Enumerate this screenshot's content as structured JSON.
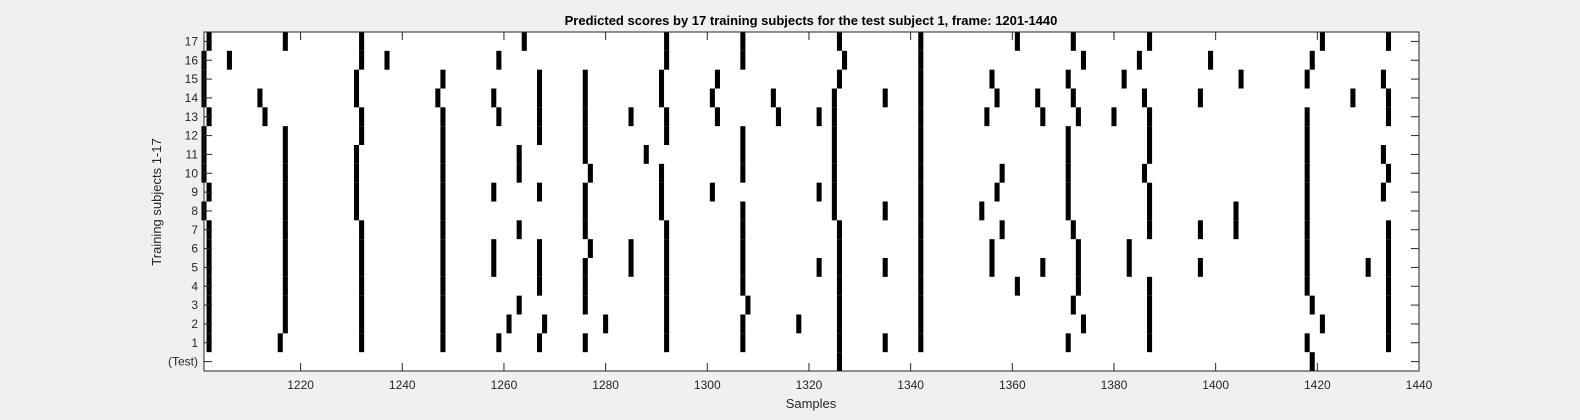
{
  "chart_data": {
    "type": "raster",
    "title": "Predicted scores by 17 training subjects for the test subject 1, frame: 1201-1440",
    "xlabel": "Samples",
    "ylabel": "Training subjects 1-17",
    "xlim": [
      1201,
      1440
    ],
    "xticks": [
      1220,
      1240,
      1260,
      1280,
      1300,
      1320,
      1340,
      1360,
      1380,
      1400,
      1420,
      1440
    ],
    "ytick_labels": [
      "(Test)",
      "1",
      "2",
      "3",
      "4",
      "5",
      "6",
      "7",
      "8",
      "9",
      "10",
      "11",
      "12",
      "13",
      "14",
      "15",
      "16",
      "17"
    ],
    "grid": false,
    "rows": [
      {
        "label": "(Test)",
        "spikes": [
          1326,
          1419
        ]
      },
      {
        "label": "1",
        "spikes": [
          1202,
          1216,
          1232,
          1248,
          1259,
          1267,
          1276,
          1292,
          1307,
          1326,
          1335,
          1342,
          1371,
          1387,
          1418,
          1434
        ]
      },
      {
        "label": "2",
        "spikes": [
          1202,
          1217,
          1232,
          1248,
          1261,
          1268,
          1280,
          1292,
          1307,
          1318,
          1326,
          1342,
          1374,
          1387,
          1421,
          1434
        ]
      },
      {
        "label": "3",
        "spikes": [
          1202,
          1217,
          1232,
          1248,
          1263,
          1276,
          1292,
          1308,
          1326,
          1342,
          1372,
          1387,
          1419,
          1434
        ]
      },
      {
        "label": "4",
        "spikes": [
          1202,
          1217,
          1232,
          1248,
          1267,
          1276,
          1292,
          1307,
          1326,
          1342,
          1361,
          1373,
          1387,
          1418,
          1434
        ]
      },
      {
        "label": "5",
        "spikes": [
          1202,
          1217,
          1232,
          1248,
          1258,
          1267,
          1276,
          1285,
          1292,
          1307,
          1322,
          1326,
          1335,
          1342,
          1356,
          1366,
          1373,
          1383,
          1397,
          1418,
          1430,
          1434
        ]
      },
      {
        "label": "6",
        "spikes": [
          1202,
          1217,
          1232,
          1248,
          1258,
          1267,
          1277,
          1285,
          1292,
          1307,
          1326,
          1342,
          1356,
          1373,
          1383,
          1418,
          1434
        ]
      },
      {
        "label": "7",
        "spikes": [
          1202,
          1217,
          1232,
          1248,
          1263,
          1276,
          1292,
          1307,
          1326,
          1342,
          1358,
          1372,
          1387,
          1397,
          1404,
          1418,
          1434
        ]
      },
      {
        "label": "8",
        "spikes": [
          1201,
          1217,
          1231,
          1248,
          1276,
          1291,
          1307,
          1325,
          1335,
          1342,
          1354,
          1371,
          1387,
          1404,
          1418
        ]
      },
      {
        "label": "9",
        "spikes": [
          1202,
          1217,
          1231,
          1248,
          1258,
          1267,
          1276,
          1291,
          1301,
          1322,
          1325,
          1342,
          1357,
          1371,
          1387,
          1418,
          1433
        ]
      },
      {
        "label": "10",
        "spikes": [
          1201,
          1217,
          1231,
          1248,
          1263,
          1277,
          1291,
          1307,
          1325,
          1342,
          1358,
          1371,
          1386,
          1418,
          1434
        ]
      },
      {
        "label": "11",
        "spikes": [
          1201,
          1217,
          1231,
          1248,
          1263,
          1276,
          1288,
          1307,
          1325,
          1342,
          1371,
          1387,
          1418,
          1433
        ]
      },
      {
        "label": "12",
        "spikes": [
          1201,
          1217,
          1232,
          1248,
          1267,
          1276,
          1292,
          1307,
          1325,
          1342,
          1371,
          1387,
          1418
        ]
      },
      {
        "label": "13",
        "spikes": [
          1202,
          1213,
          1232,
          1248,
          1259,
          1267,
          1276,
          1285,
          1292,
          1302,
          1314,
          1322,
          1325,
          1342,
          1355,
          1366,
          1373,
          1380,
          1387,
          1418,
          1434
        ]
      },
      {
        "label": "14",
        "spikes": [
          1201,
          1212,
          1231,
          1247,
          1258,
          1267,
          1276,
          1291,
          1301,
          1313,
          1325,
          1335,
          1342,
          1357,
          1365,
          1372,
          1386,
          1397,
          1427,
          1434
        ]
      },
      {
        "label": "15",
        "spikes": [
          1201,
          1231,
          1248,
          1267,
          1276,
          1291,
          1302,
          1326,
          1342,
          1356,
          1371,
          1382,
          1405,
          1418,
          1433
        ]
      },
      {
        "label": "16",
        "spikes": [
          1201,
          1206,
          1232,
          1237,
          1259,
          1292,
          1307,
          1327,
          1342,
          1374,
          1385,
          1399,
          1419
        ]
      },
      {
        "label": "17",
        "spikes": [
          1202,
          1217,
          1232,
          1264,
          1292,
          1307,
          1326,
          1342,
          1361,
          1372,
          1387,
          1421,
          1434
        ]
      }
    ]
  }
}
